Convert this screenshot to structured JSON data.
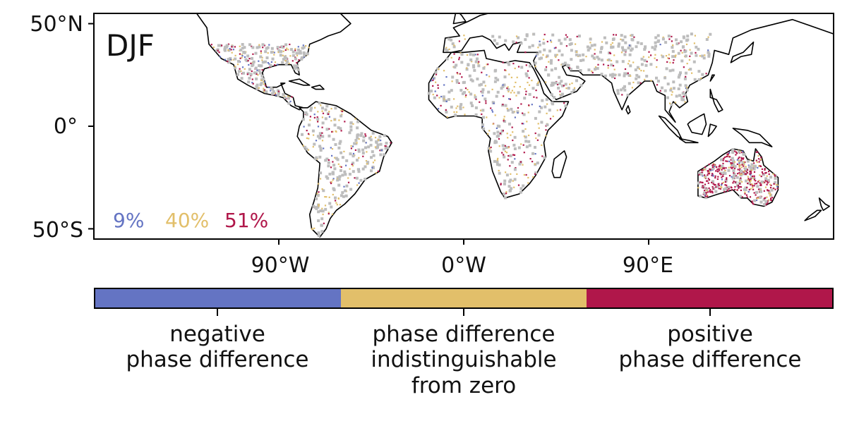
{
  "map": {
    "season": "DJF",
    "y_ticks": [
      {
        "label": "50°N",
        "lat": 50
      },
      {
        "label": "0°",
        "lat": 0
      },
      {
        "label": "50°S",
        "lat": -50
      }
    ],
    "x_ticks": [
      {
        "label": "90°W",
        "lon": -90
      },
      {
        "label": "0°W",
        "lon": 0
      },
      {
        "label": "90°E",
        "lon": 90
      }
    ],
    "extent": {
      "lon_min": -180,
      "lon_max": 180,
      "lat_min": -55,
      "lat_max": 55
    },
    "percentages": [
      {
        "value": "9%",
        "category": "negative"
      },
      {
        "value": "40%",
        "category": "indistinguishable"
      },
      {
        "value": "51%",
        "category": "positive"
      }
    ],
    "land_gray": "#bdbdbd"
  },
  "colorbar": {
    "categories": [
      {
        "id": "negative",
        "label_lines": [
          "negative",
          "phase difference"
        ],
        "color": "#6474c3"
      },
      {
        "id": "indistinguishable",
        "label_lines": [
          "phase difference",
          "indistinguishable",
          "from zero"
        ],
        "color": "#e2bf6a"
      },
      {
        "id": "positive",
        "label_lines": [
          "positive",
          "phase difference"
        ],
        "color": "#b0174a"
      }
    ]
  }
}
